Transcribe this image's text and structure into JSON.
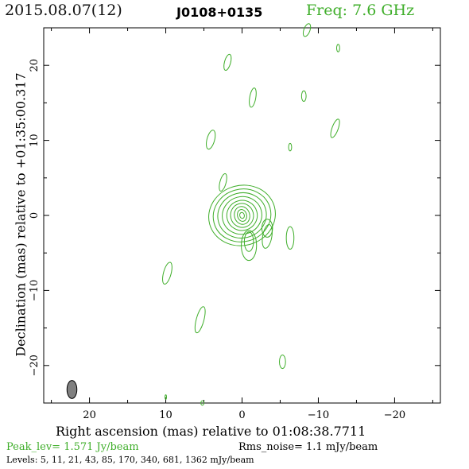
{
  "header": {
    "date": "2015.08.07(12)",
    "source": "J0108+0135",
    "freq": "Freq: 7.6 GHz"
  },
  "footer": {
    "peak": "Peak_lev= 1.571 Jy/beam",
    "rms": "Rms_noise= 1.1 mJy/beam",
    "levels": "Levels: 5, 11, 21, 43, 85, 170, 340, 681, 1362 mJy/beam"
  },
  "chart_data": {
    "type": "contour",
    "xlabel": "Right ascension (mas) relative to 01:08:38.7711",
    "ylabel": "Declination (mas) relative to +01:35:00.317",
    "xlim": [
      26,
      -26
    ],
    "ylim": [
      -25,
      25
    ],
    "xticks": [
      20,
      10,
      0,
      -10,
      -20
    ],
    "yticks": [
      20,
      10,
      0,
      -10,
      -20
    ],
    "xticklabels": [
      "20",
      "10",
      "0",
      "−10",
      "−20"
    ],
    "yticklabels": [
      "20",
      "10",
      "0",
      "−10",
      "−20"
    ],
    "grid": false,
    "contour_color": "#3fae2a",
    "levels_mjy": [
      5,
      11,
      21,
      43,
      85,
      170,
      340,
      681,
      1362
    ],
    "peak_jy_per_beam": 1.571,
    "rms_mjy_per_beam": 1.1,
    "core": {
      "x": 0.0,
      "y": 0.0
    },
    "core_contours": [
      {
        "rx": 4.4,
        "ry": 4.0,
        "angle": -15
      },
      {
        "rx": 3.8,
        "ry": 3.5,
        "angle": -15
      },
      {
        "rx": 3.2,
        "ry": 3.0,
        "angle": -15
      },
      {
        "rx": 2.6,
        "ry": 2.5,
        "angle": -15
      },
      {
        "rx": 2.0,
        "ry": 2.0,
        "angle": -15
      },
      {
        "rx": 1.5,
        "ry": 1.6,
        "angle": -15
      },
      {
        "rx": 1.0,
        "ry": 1.2,
        "angle": -15
      },
      {
        "rx": 0.6,
        "ry": 0.8,
        "angle": -15
      },
      {
        "rx": 0.3,
        "ry": 0.4,
        "angle": -15
      }
    ],
    "jet_contours": [
      {
        "x": -0.9,
        "y": -4.0,
        "rx": 1.0,
        "ry": 2.0,
        "angle": 0
      },
      {
        "x": -0.9,
        "y": -3.5,
        "rx": 0.6,
        "ry": 1.3,
        "angle": 0
      },
      {
        "x": -3.3,
        "y": -1.7,
        "rx": 0.7,
        "ry": 1.2,
        "angle": 0
      }
    ],
    "islands": [
      {
        "x": -3.3,
        "y": -2.8,
        "rx": 0.6,
        "ry": 1.6,
        "angle": 10
      },
      {
        "x": -6.3,
        "y": -3.0,
        "rx": 0.5,
        "ry": 1.5,
        "angle": 0
      },
      {
        "x": -8.5,
        "y": 24.7,
        "rx": 0.4,
        "ry": 0.9,
        "angle": 20
      },
      {
        "x": -12.6,
        "y": 22.3,
        "rx": 0.2,
        "ry": 0.5,
        "angle": 0
      },
      {
        "x": 1.9,
        "y": 20.4,
        "rx": 0.4,
        "ry": 1.1,
        "angle": 15
      },
      {
        "x": -1.4,
        "y": 15.7,
        "rx": 0.4,
        "ry": 1.3,
        "angle": 10
      },
      {
        "x": -8.1,
        "y": 15.9,
        "rx": 0.3,
        "ry": 0.7,
        "angle": 0
      },
      {
        "x": -12.2,
        "y": 11.6,
        "rx": 0.4,
        "ry": 1.3,
        "angle": 20
      },
      {
        "x": 4.1,
        "y": 10.1,
        "rx": 0.5,
        "ry": 1.3,
        "angle": 15
      },
      {
        "x": -6.3,
        "y": 9.1,
        "rx": 0.2,
        "ry": 0.5,
        "angle": 0
      },
      {
        "x": 2.5,
        "y": 4.4,
        "rx": 0.4,
        "ry": 1.2,
        "angle": 15
      },
      {
        "x": 9.8,
        "y": -7.7,
        "rx": 0.5,
        "ry": 1.5,
        "angle": 15
      },
      {
        "x": 5.5,
        "y": -13.9,
        "rx": 0.5,
        "ry": 1.8,
        "angle": 15
      },
      {
        "x": -5.3,
        "y": -19.5,
        "rx": 0.4,
        "ry": 0.9,
        "angle": 0
      },
      {
        "x": 10.0,
        "y": -24.2,
        "rx": 0.1,
        "ry": 0.3,
        "angle": 0
      },
      {
        "x": 5.2,
        "y": -25.0,
        "rx": 0.2,
        "ry": 0.3,
        "angle": 0
      }
    ],
    "beam": {
      "x": 22.3,
      "y": -23.2,
      "major": 2.4,
      "minor": 1.3,
      "angle": 0,
      "color": "#808080"
    }
  }
}
